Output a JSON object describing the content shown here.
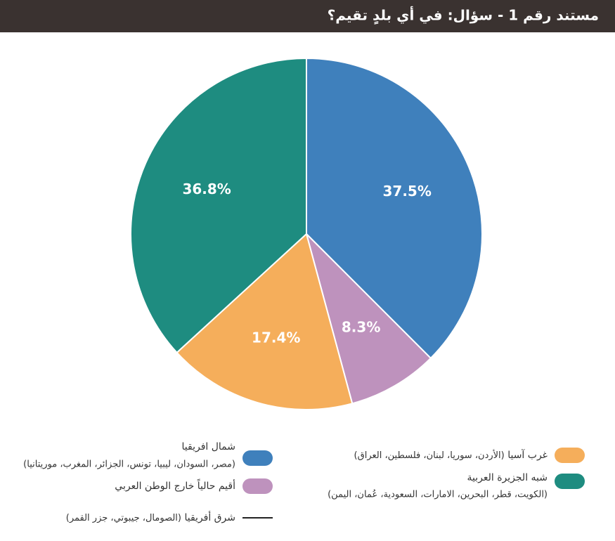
{
  "chart_data": {
    "type": "pie",
    "title": "مستند رقم 1 - سؤال: في أي بلدٍ تقيم؟",
    "categories": [
      "شمال افريقيا",
      "أقيم حالياً خارج الوطن العربي",
      "غرب آسيا",
      "شبه الجزيرة العربية",
      "شرق أفريقيا"
    ],
    "category_details": [
      "(مصر، السودان، ليبيا، تونس، الجزائر، المغرب، موريتانيا)",
      null,
      "(الأردن، سوريا،  لبنان، فلسطين، العراق)",
      "(الكويت، قطر، البحرين، الامارات، السعودية، عُمان، اليمن)",
      "(الصومال، جيبوتي، جزر القمر)"
    ],
    "values": [
      37.5,
      8.3,
      17.4,
      36.8,
      0
    ],
    "value_labels": [
      "37.5%",
      "8.3%",
      "17.4%",
      "36.8%",
      null
    ],
    "colors": [
      "#3f80bc",
      "#be92bd",
      "#f5ae5b",
      "#1e8c80",
      "#222222"
    ]
  }
}
